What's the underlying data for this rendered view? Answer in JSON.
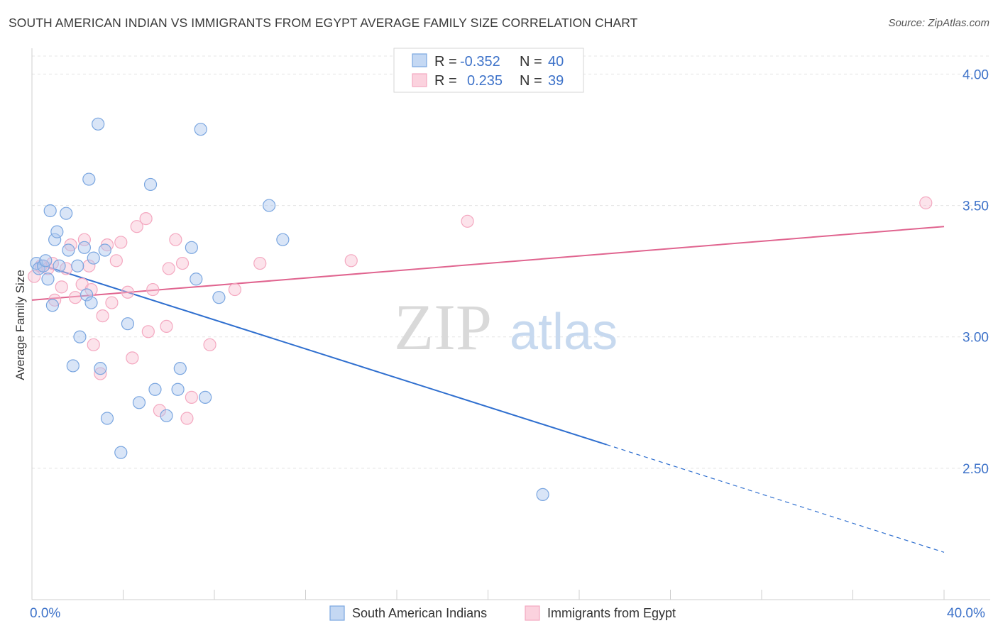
{
  "title": "SOUTH AMERICAN INDIAN VS IMMIGRANTS FROM EGYPT AVERAGE FAMILY SIZE CORRELATION CHART",
  "source": "Source: ZipAtlas.com",
  "watermark": {
    "zip": "ZIP",
    "atlas": "atlas"
  },
  "legend_box": [
    {
      "r_label": "R =",
      "r_value": "-0.352",
      "n_label": "N =",
      "n_value": "40"
    },
    {
      "r_label": "R =",
      "r_value": "0.235",
      "n_label": "N =",
      "n_value": "39"
    }
  ],
  "chart_data": {
    "type": "scatter",
    "xlabel": "",
    "ylabel": "Average Family Size",
    "xlim": [
      0,
      40
    ],
    "ylim": [
      2.0,
      4.12
    ],
    "x_tick_labels": [
      "0.0%",
      "40.0%"
    ],
    "y_ticks": [
      2.5,
      3.0,
      3.5,
      4.0
    ],
    "y_tick_labels": [
      "2.50",
      "3.00",
      "3.50",
      "4.00"
    ],
    "grid": true,
    "legend_placement": "bottom",
    "series": [
      {
        "name": "South American Indians",
        "color": "#7aa6e0",
        "line_color": "#2f6fcf",
        "points": [
          [
            0.2,
            3.28
          ],
          [
            0.3,
            3.26
          ],
          [
            0.5,
            3.27
          ],
          [
            0.6,
            3.29
          ],
          [
            0.7,
            3.22
          ],
          [
            0.8,
            3.48
          ],
          [
            0.9,
            3.12
          ],
          [
            1.0,
            3.37
          ],
          [
            1.1,
            3.4
          ],
          [
            1.2,
            3.27
          ],
          [
            1.5,
            3.47
          ],
          [
            1.6,
            3.33
          ],
          [
            1.8,
            2.89
          ],
          [
            2.0,
            3.27
          ],
          [
            2.1,
            3.0
          ],
          [
            2.3,
            3.34
          ],
          [
            2.4,
            3.16
          ],
          [
            2.5,
            3.6
          ],
          [
            2.6,
            3.13
          ],
          [
            2.7,
            3.3
          ],
          [
            2.9,
            3.81
          ],
          [
            3.0,
            2.88
          ],
          [
            3.2,
            3.33
          ],
          [
            3.3,
            2.69
          ],
          [
            3.9,
            2.56
          ],
          [
            4.2,
            3.05
          ],
          [
            4.7,
            2.75
          ],
          [
            5.2,
            3.58
          ],
          [
            5.4,
            2.8
          ],
          [
            5.9,
            2.7
          ],
          [
            6.4,
            2.8
          ],
          [
            6.5,
            2.88
          ],
          [
            7.0,
            3.34
          ],
          [
            7.2,
            3.22
          ],
          [
            7.4,
            3.79
          ],
          [
            7.6,
            2.77
          ],
          [
            8.2,
            3.15
          ],
          [
            10.4,
            3.5
          ],
          [
            11.0,
            3.37
          ],
          [
            22.4,
            2.4
          ]
        ],
        "trend": {
          "x0": 0.2,
          "y0": 3.28,
          "x1": 25.2,
          "y1": 2.59,
          "dash_to_x": 40,
          "dash_to_y": 2.18
        }
      },
      {
        "name": "Immigrants from Egypt",
        "color": "#f4a8c0",
        "line_color": "#e0648f",
        "points": [
          [
            0.1,
            3.23
          ],
          [
            0.4,
            3.27
          ],
          [
            0.7,
            3.26
          ],
          [
            0.9,
            3.28
          ],
          [
            1.0,
            3.14
          ],
          [
            1.3,
            3.19
          ],
          [
            1.5,
            3.26
          ],
          [
            1.7,
            3.35
          ],
          [
            1.9,
            3.15
          ],
          [
            2.2,
            3.2
          ],
          [
            2.3,
            3.37
          ],
          [
            2.5,
            3.27
          ],
          [
            2.6,
            3.18
          ],
          [
            2.7,
            2.97
          ],
          [
            3.0,
            2.86
          ],
          [
            3.1,
            3.08
          ],
          [
            3.3,
            3.35
          ],
          [
            3.5,
            3.13
          ],
          [
            3.7,
            3.29
          ],
          [
            3.9,
            3.36
          ],
          [
            4.2,
            3.17
          ],
          [
            4.4,
            2.92
          ],
          [
            4.6,
            3.42
          ],
          [
            5.0,
            3.45
          ],
          [
            5.1,
            3.02
          ],
          [
            5.3,
            3.18
          ],
          [
            5.6,
            2.72
          ],
          [
            5.9,
            3.04
          ],
          [
            6.0,
            3.26
          ],
          [
            6.3,
            3.37
          ],
          [
            6.6,
            3.28
          ],
          [
            6.8,
            2.69
          ],
          [
            7.0,
            2.77
          ],
          [
            7.8,
            2.97
          ],
          [
            8.9,
            3.18
          ],
          [
            10.0,
            3.28
          ],
          [
            14.0,
            3.29
          ],
          [
            19.1,
            3.44
          ],
          [
            39.2,
            3.51
          ]
        ],
        "trend": {
          "x0": 0.0,
          "y0": 3.14,
          "x1": 40.0,
          "y1": 3.42
        }
      }
    ]
  }
}
